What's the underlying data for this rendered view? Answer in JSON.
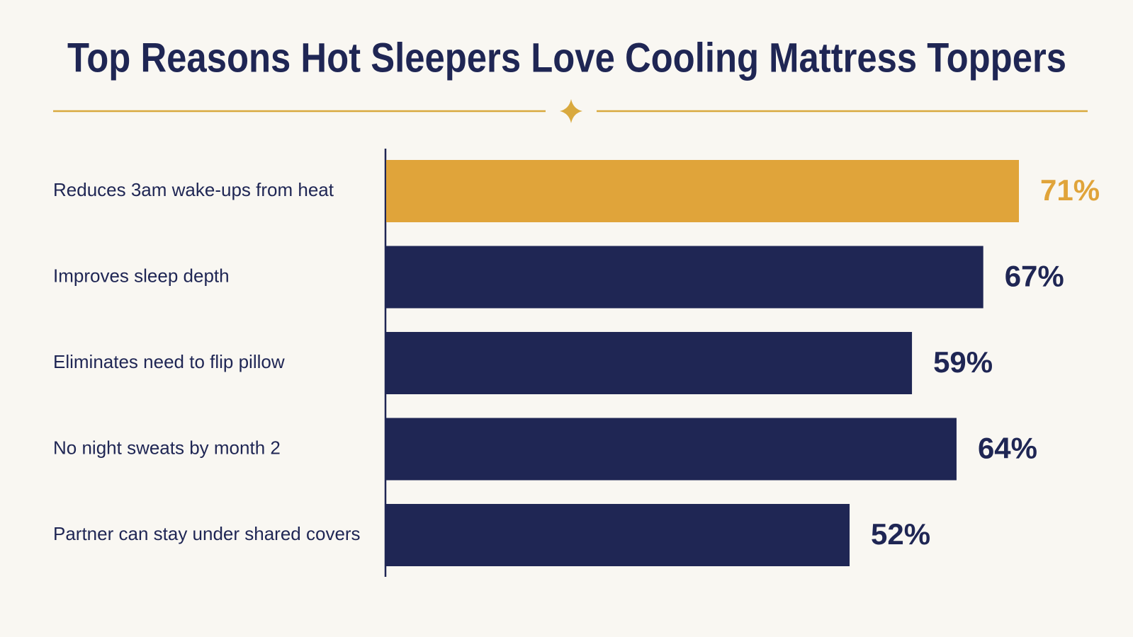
{
  "chart_data": {
    "type": "bar",
    "orientation": "horizontal",
    "title": "Top Reasons Hot Sleepers Love Cooling Mattress Toppers",
    "categories": [
      "Reduces 3am wake-ups from heat",
      "Improves sleep depth",
      "Eliminates need to flip pillow",
      "No night sweats by month 2",
      "Partner can stay under shared covers"
    ],
    "values": [
      71,
      67,
      59,
      64,
      52
    ],
    "value_labels": [
      "71%",
      "67%",
      "59%",
      "64%",
      "52%"
    ],
    "colors": [
      "#e0a43a",
      "#1f2654",
      "#1f2654",
      "#1f2654",
      "#1f2654"
    ]
  }
}
